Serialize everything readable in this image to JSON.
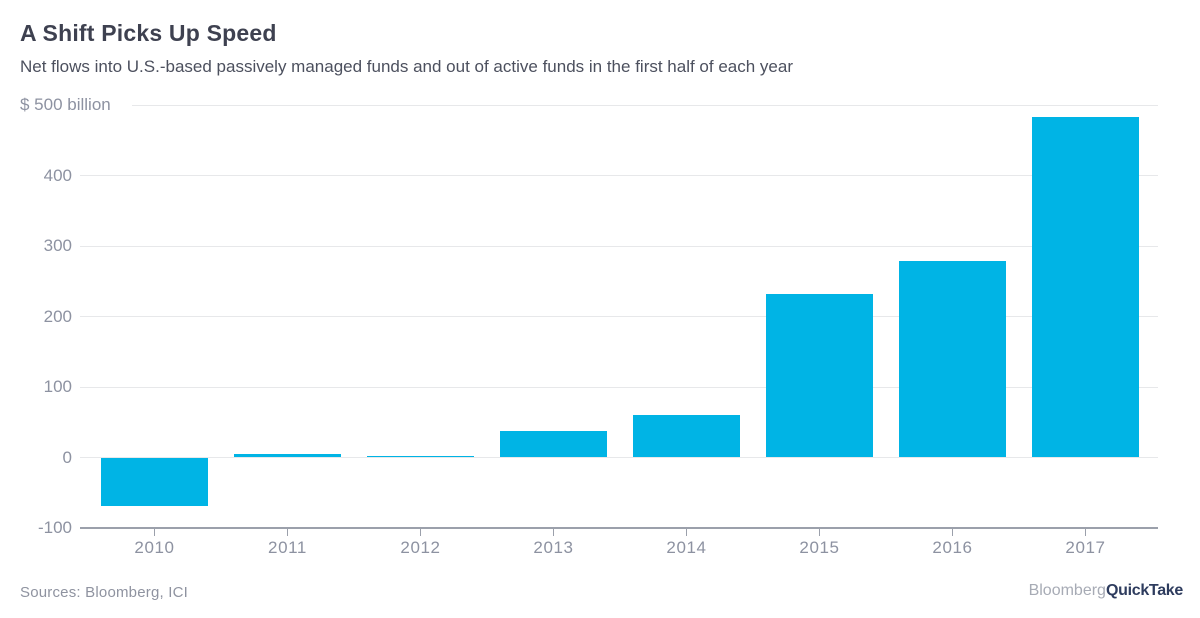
{
  "chart_data": {
    "type": "bar",
    "title": "A Shift Picks Up Speed",
    "subtitle": "Net flows into U.S.-based passively managed funds and out of active funds in the first half of each year",
    "categories": [
      "2010",
      "2011",
      "2012",
      "2013",
      "2014",
      "2015",
      "2016",
      "2017"
    ],
    "values": [
      -69,
      5,
      2,
      38,
      60,
      232,
      279,
      483
    ],
    "xlabel": "",
    "ylabel": "$ billion",
    "ylim": [
      -100,
      500
    ],
    "yticks": [
      500,
      400,
      300,
      200,
      100,
      0,
      -100
    ],
    "ytick_labels": [
      "$ 500 billion",
      "400",
      "300",
      "200",
      "100",
      "0",
      "-100"
    ],
    "grid": true,
    "legend": "none",
    "bar_color": "#00b4e5",
    "gridline_color": "#e7e8ea",
    "axis_color": "#9ba0ab",
    "label_color": "#8d92a1"
  },
  "footer": {
    "source": "Sources: Bloomberg, ICI",
    "brand_light": "Bloomberg",
    "brand_bold": "QuickTake"
  }
}
